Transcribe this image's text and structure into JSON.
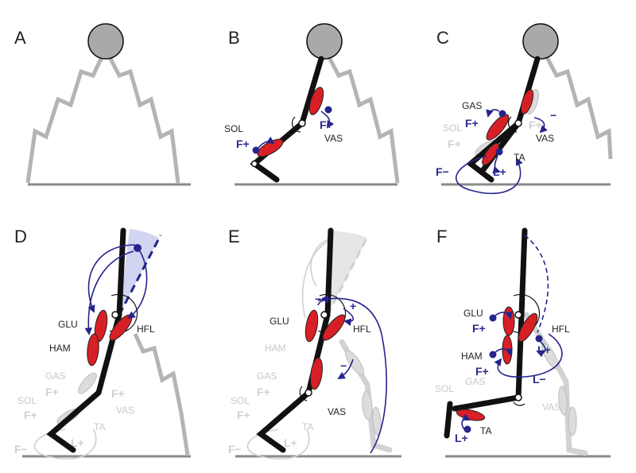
{
  "panels": [
    {
      "id": "A",
      "label": "A"
    },
    {
      "id": "B",
      "label": "B"
    },
    {
      "id": "C",
      "label": "C"
    },
    {
      "id": "D",
      "label": "D"
    },
    {
      "id": "E",
      "label": "E"
    },
    {
      "id": "F",
      "label": "F"
    }
  ],
  "muscles": {
    "sol": "SOL",
    "vas": "VAS",
    "gas": "GAS",
    "ta": "TA",
    "glu": "GLU",
    "ham": "HAM",
    "hfl": "HFL"
  },
  "feedback": {
    "force_pos": "F+",
    "force_neg": "F−",
    "length_pos": "L+",
    "length_neg": "L−",
    "plus": "+",
    "minus": "−"
  },
  "colors": {
    "muscle_active": "#d81f26",
    "feedback_loop": "#24248c",
    "inactive": "#cfcfcf",
    "ground": "#8a8a8a",
    "trunk_region": "#c6cbef"
  }
}
